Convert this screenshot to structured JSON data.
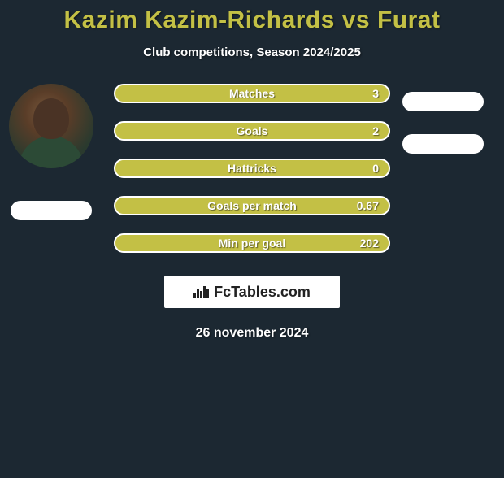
{
  "title": "Kazim Kazim-Richards vs Furat",
  "subtitle": "Club competitions, Season 2024/2025",
  "colors": {
    "background": "#1c2832",
    "accent": "#c3c045",
    "border": "#ffffff",
    "text": "#ffffff"
  },
  "typography": {
    "title_fontsize": 30,
    "subtitle_fontsize": 15,
    "stat_fontsize": 14,
    "date_fontsize": 16
  },
  "stats": [
    {
      "label": "Matches",
      "value": "3"
    },
    {
      "label": "Goals",
      "value": "2"
    },
    {
      "label": "Hattricks",
      "value": "0"
    },
    {
      "label": "Goals per match",
      "value": "0.67"
    },
    {
      "label": "Min per goal",
      "value": "202"
    }
  ],
  "stat_row": {
    "height": 24,
    "gap": 22,
    "border_radius": 12,
    "border_width": 2,
    "fill": "#c3c045",
    "border_color": "#ffffff"
  },
  "right_pills_count": 2,
  "branding": "FcTables.com",
  "date": "26 november 2024"
}
